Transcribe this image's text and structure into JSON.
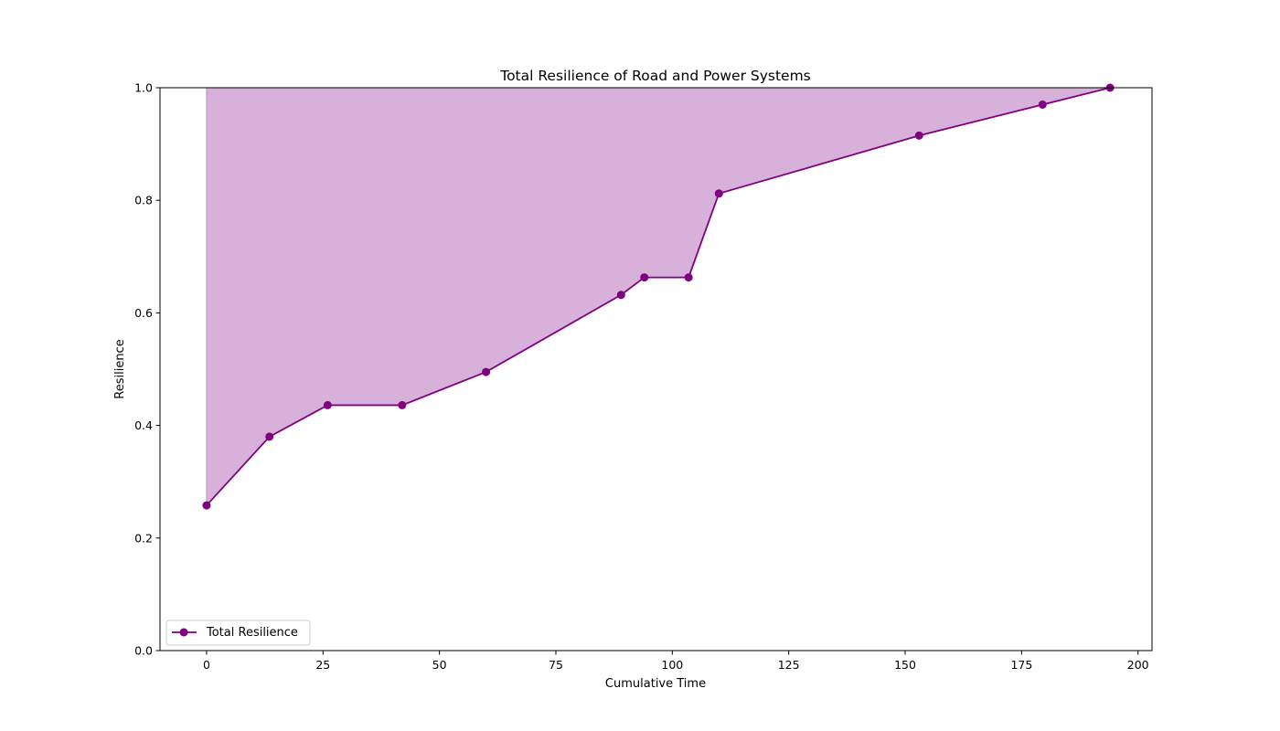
{
  "chart_data": {
    "type": "line",
    "title": "Total Resilience of Road and Power Systems",
    "xlabel": "Cumulative Time",
    "ylabel": "Resilience",
    "xlim": [
      -10,
      203
    ],
    "ylim": [
      0,
      1.0
    ],
    "x_ticks": [
      0,
      25,
      50,
      75,
      100,
      125,
      150,
      175,
      200
    ],
    "y_ticks": [
      0.0,
      0.2,
      0.4,
      0.6,
      0.8,
      1.0
    ],
    "x_tick_labels": [
      "0",
      "25",
      "50",
      "75",
      "100",
      "125",
      "150",
      "175",
      "200"
    ],
    "y_tick_labels": [
      "0.0",
      "0.2",
      "0.4",
      "0.6",
      "0.8",
      "1.0"
    ],
    "grid": false,
    "legend_position": "lower-left",
    "fill_between": {
      "upper": 1.0,
      "color": "#d8b1da"
    },
    "series": [
      {
        "name": "Total Resilience",
        "color": "#800080",
        "marker": "circle",
        "x": [
          0,
          13.5,
          26,
          42,
          60,
          89,
          94,
          103.5,
          110,
          153,
          179.5,
          194
        ],
        "y": [
          0.258,
          0.38,
          0.436,
          0.436,
          0.495,
          0.632,
          0.663,
          0.663,
          0.812,
          0.915,
          0.97,
          1.0
        ]
      }
    ]
  }
}
